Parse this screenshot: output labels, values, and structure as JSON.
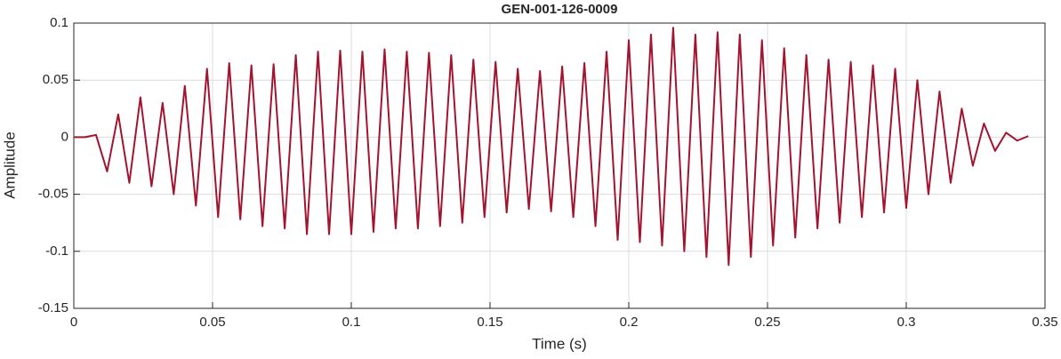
{
  "chart_data": {
    "type": "line",
    "title": "GEN-001-126-0009",
    "xlabel": "Time (s)",
    "ylabel": "Amplitude",
    "x": [
      0,
      0.004,
      0.008,
      0.012,
      0.016,
      0.02,
      0.024,
      0.028,
      0.032,
      0.036,
      0.04,
      0.044,
      0.048,
      0.052,
      0.056,
      0.06,
      0.064,
      0.068,
      0.072,
      0.076,
      0.08,
      0.084,
      0.088,
      0.092,
      0.096,
      0.1,
      0.104,
      0.108,
      0.112,
      0.116,
      0.12,
      0.124,
      0.128,
      0.132,
      0.136,
      0.14,
      0.144,
      0.148,
      0.152,
      0.156,
      0.16,
      0.164,
      0.168,
      0.172,
      0.176,
      0.18,
      0.184,
      0.188,
      0.192,
      0.196,
      0.2,
      0.204,
      0.208,
      0.212,
      0.216,
      0.22,
      0.224,
      0.228,
      0.232,
      0.236,
      0.24,
      0.244,
      0.248,
      0.252,
      0.256,
      0.26,
      0.264,
      0.268,
      0.272,
      0.276,
      0.28,
      0.284,
      0.288,
      0.292,
      0.296,
      0.3,
      0.304,
      0.308,
      0.312,
      0.316,
      0.32,
      0.324,
      0.328,
      0.332,
      0.336,
      0.34,
      0.344
    ],
    "series": [
      {
        "color": "#a2142f",
        "values": [
          0,
          0,
          0.002,
          -0.03,
          0.02,
          -0.04,
          0.035,
          -0.043,
          0.03,
          -0.05,
          0.045,
          -0.06,
          0.06,
          -0.07,
          0.065,
          -0.072,
          0.063,
          -0.078,
          0.064,
          -0.08,
          0.072,
          -0.085,
          0.075,
          -0.085,
          0.076,
          -0.085,
          0.075,
          -0.083,
          0.077,
          -0.08,
          0.075,
          -0.08,
          0.074,
          -0.078,
          0.072,
          -0.075,
          0.068,
          -0.07,
          0.066,
          -0.066,
          0.06,
          -0.063,
          0.058,
          -0.065,
          0.062,
          -0.07,
          0.065,
          -0.078,
          0.075,
          -0.09,
          0.085,
          -0.092,
          0.09,
          -0.095,
          0.096,
          -0.1,
          0.09,
          -0.105,
          0.092,
          -0.112,
          0.09,
          -0.105,
          0.085,
          -0.095,
          0.078,
          -0.088,
          0.072,
          -0.08,
          0.068,
          -0.075,
          0.066,
          -0.07,
          0.063,
          -0.066,
          0.06,
          -0.062,
          0.05,
          -0.05,
          0.04,
          -0.04,
          0.025,
          -0.025,
          0.012,
          -0.012,
          0.004,
          -0.003,
          0.001
        ]
      }
    ],
    "xlim": [
      0,
      0.35
    ],
    "xticks": [
      0,
      0.05,
      0.1,
      0.15,
      0.2,
      0.25,
      0.3,
      0.35
    ],
    "ylim": [
      -0.15,
      0.1
    ],
    "yticks": [
      -0.15,
      -0.1,
      -0.05,
      0,
      0.05,
      0.1
    ],
    "grid": true
  }
}
